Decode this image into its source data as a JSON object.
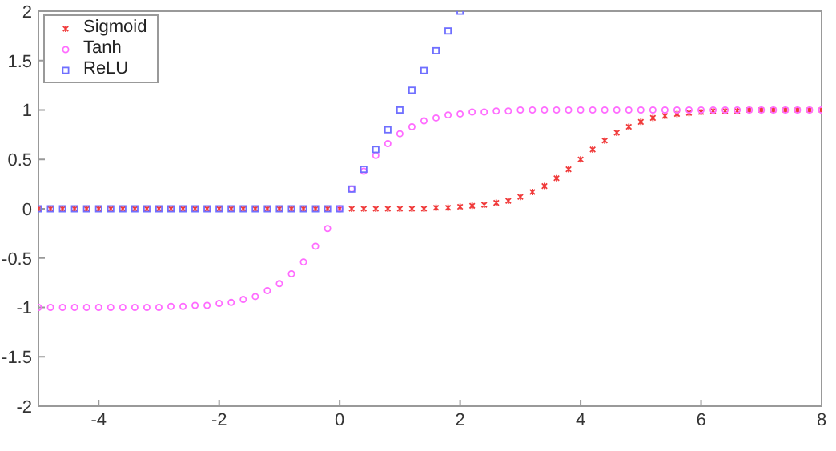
{
  "chart_data": {
    "type": "scatter",
    "xlim": [
      -5,
      8
    ],
    "xticks": [
      -4,
      -2,
      0,
      2,
      4,
      6,
      8
    ],
    "ylim": [
      -2,
      2
    ],
    "yticks": [
      -2,
      -1.5,
      -1,
      -0.5,
      0,
      0.5,
      1,
      1.5,
      2
    ],
    "grid": false,
    "legend": "top left",
    "series": [
      {
        "name": "Sigmoid",
        "color": "#f03a3a",
        "marker": "cross",
        "x": [
          -5,
          -4.8,
          -4.6,
          -4.4,
          -4.2,
          -4,
          -3.8,
          -3.6,
          -3.4,
          -3.2,
          -3,
          -2.8,
          -2.6,
          -2.4,
          -2.2,
          -2,
          -1.8,
          -1.6,
          -1.4,
          -1.2,
          -1,
          -0.8,
          -0.6,
          -0.4,
          -0.2,
          0,
          0.2,
          0.4,
          0.6,
          0.8,
          1,
          1.2,
          1.4,
          1.6,
          1.8,
          2,
          2.2,
          2.4,
          2.6,
          2.8,
          3,
          3.2,
          3.4,
          3.6,
          3.8,
          4,
          4.2,
          4.4,
          4.6,
          4.8,
          5,
          5.2,
          5.4,
          5.6,
          5.8,
          6,
          6.2,
          6.4,
          6.6,
          6.8,
          7,
          7.2,
          7.4,
          7.6,
          7.8,
          8
        ],
        "values": [
          0,
          0,
          0,
          0,
          0,
          0,
          0,
          0,
          0,
          0,
          0,
          0,
          0,
          0,
          0,
          0,
          0,
          0,
          0,
          0,
          0,
          0,
          0,
          0,
          0,
          0,
          0,
          0,
          0,
          0,
          0,
          0,
          0,
          0.01,
          0.01,
          0.02,
          0.03,
          0.04,
          0.06,
          0.08,
          0.12,
          0.17,
          0.23,
          0.31,
          0.4,
          0.5,
          0.6,
          0.69,
          0.77,
          0.83,
          0.88,
          0.92,
          0.94,
          0.96,
          0.97,
          0.98,
          0.99,
          0.99,
          0.99,
          1,
          1,
          1,
          1,
          1,
          1,
          1
        ]
      },
      {
        "name": "Tanh",
        "color": "#ff6cff",
        "marker": "circle",
        "x": [
          -5,
          -4.8,
          -4.6,
          -4.4,
          -4.2,
          -4,
          -3.8,
          -3.6,
          -3.4,
          -3.2,
          -3,
          -2.8,
          -2.6,
          -2.4,
          -2.2,
          -2,
          -1.8,
          -1.6,
          -1.4,
          -1.2,
          -1,
          -0.8,
          -0.6,
          -0.4,
          -0.2,
          0,
          0.2,
          0.4,
          0.6,
          0.8,
          1,
          1.2,
          1.4,
          1.6,
          1.8,
          2,
          2.2,
          2.4,
          2.6,
          2.8,
          3,
          3.2,
          3.4,
          3.6,
          3.8,
          4,
          4.2,
          4.4,
          4.6,
          4.8,
          5,
          5.2,
          5.4,
          5.6,
          5.8,
          6,
          6.2,
          6.4,
          6.6,
          6.8,
          7,
          7.2,
          7.4,
          7.6,
          7.8,
          8
        ],
        "values": [
          -1,
          -1,
          -1,
          -1,
          -1,
          -1,
          -1,
          -1,
          -1,
          -1,
          -1,
          -0.99,
          -0.99,
          -0.98,
          -0.98,
          -0.96,
          -0.95,
          -0.92,
          -0.89,
          -0.83,
          -0.76,
          -0.66,
          -0.54,
          -0.38,
          -0.2,
          0,
          0.2,
          0.38,
          0.54,
          0.66,
          0.76,
          0.83,
          0.89,
          0.92,
          0.95,
          0.96,
          0.98,
          0.98,
          0.99,
          0.99,
          1,
          1,
          1,
          1,
          1,
          1,
          1,
          1,
          1,
          1,
          1,
          1,
          1,
          1,
          1,
          1,
          1,
          1,
          1,
          1,
          1,
          1,
          1,
          1,
          1,
          1
        ]
      },
      {
        "name": "ReLU",
        "color": "#6f6fff",
        "marker": "square",
        "x": [
          -5,
          -4.8,
          -4.6,
          -4.4,
          -4.2,
          -4,
          -3.8,
          -3.6,
          -3.4,
          -3.2,
          -3,
          -2.8,
          -2.6,
          -2.4,
          -2.2,
          -2,
          -1.8,
          -1.6,
          -1.4,
          -1.2,
          -1,
          -0.8,
          -0.6,
          -0.4,
          -0.2,
          0,
          0.2,
          0.4,
          0.6,
          0.8,
          1,
          1.2,
          1.4,
          1.6,
          1.8,
          2
        ],
        "values": [
          0,
          0,
          0,
          0,
          0,
          0,
          0,
          0,
          0,
          0,
          0,
          0,
          0,
          0,
          0,
          0,
          0,
          0,
          0,
          0,
          0,
          0,
          0,
          0,
          0,
          0,
          0.2,
          0.4,
          0.6,
          0.8,
          1,
          1.2,
          1.4,
          1.6,
          1.8,
          2
        ]
      }
    ]
  }
}
